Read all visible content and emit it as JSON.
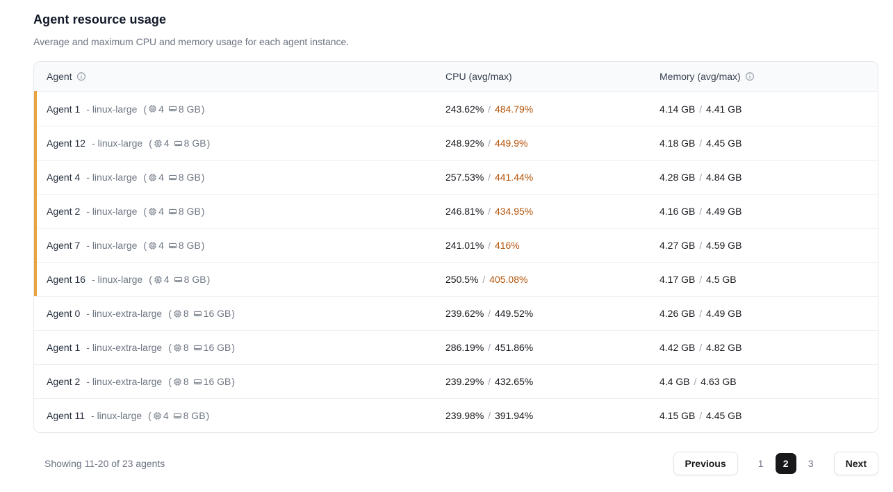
{
  "page": {
    "title": "Agent resource usage",
    "subtitle": "Average and maximum CPU and memory usage for each agent instance."
  },
  "table": {
    "columns": {
      "agent": "Agent",
      "cpu": "CPU (avg/max)",
      "memory": "Memory (avg/max)"
    },
    "separator": "/",
    "rows": [
      {
        "name": "Agent 1",
        "type": "- linux-large",
        "cpus": "4",
        "mem": "8 GB",
        "cpu_avg": "243.62%",
        "cpu_max": "484.79%",
        "flagged": true,
        "mem_avg": "4.14 GB",
        "mem_max": "4.41 GB"
      },
      {
        "name": "Agent 12",
        "type": "- linux-large",
        "cpus": "4",
        "mem": "8 GB",
        "cpu_avg": "248.92%",
        "cpu_max": "449.9%",
        "flagged": true,
        "mem_avg": "4.18 GB",
        "mem_max": "4.45 GB"
      },
      {
        "name": "Agent 4",
        "type": "- linux-large",
        "cpus": "4",
        "mem": "8 GB",
        "cpu_avg": "257.53%",
        "cpu_max": "441.44%",
        "flagged": true,
        "mem_avg": "4.28 GB",
        "mem_max": "4.84 GB"
      },
      {
        "name": "Agent 2",
        "type": "- linux-large",
        "cpus": "4",
        "mem": "8 GB",
        "cpu_avg": "246.81%",
        "cpu_max": "434.95%",
        "flagged": true,
        "mem_avg": "4.16 GB",
        "mem_max": "4.49 GB"
      },
      {
        "name": "Agent 7",
        "type": "- linux-large",
        "cpus": "4",
        "mem": "8 GB",
        "cpu_avg": "241.01%",
        "cpu_max": "416%",
        "flagged": true,
        "mem_avg": "4.27 GB",
        "mem_max": "4.59 GB"
      },
      {
        "name": "Agent 16",
        "type": "- linux-large",
        "cpus": "4",
        "mem": "8 GB",
        "cpu_avg": "250.5%",
        "cpu_max": "405.08%",
        "flagged": true,
        "mem_avg": "4.17 GB",
        "mem_max": "4.5 GB"
      },
      {
        "name": "Agent 0",
        "type": "- linux-extra-large",
        "cpus": "8",
        "mem": "16 GB",
        "cpu_avg": "239.62%",
        "cpu_max": "449.52%",
        "flagged": false,
        "mem_avg": "4.26 GB",
        "mem_max": "4.49 GB"
      },
      {
        "name": "Agent 1",
        "type": "- linux-extra-large",
        "cpus": "8",
        "mem": "16 GB",
        "cpu_avg": "286.19%",
        "cpu_max": "451.86%",
        "flagged": false,
        "mem_avg": "4.42 GB",
        "mem_max": "4.82 GB"
      },
      {
        "name": "Agent 2",
        "type": "- linux-extra-large",
        "cpus": "8",
        "mem": "16 GB",
        "cpu_avg": "239.29%",
        "cpu_max": "432.65%",
        "flagged": false,
        "mem_avg": "4.4 GB",
        "mem_max": "4.63 GB"
      },
      {
        "name": "Agent 11",
        "type": "- linux-large",
        "cpus": "4",
        "mem": "8 GB",
        "cpu_avg": "239.98%",
        "cpu_max": "391.94%",
        "flagged": false,
        "mem_avg": "4.15 GB",
        "mem_max": "4.45 GB"
      }
    ]
  },
  "footer": {
    "summary": "Showing 11-20 of 23 agents",
    "prev_label": "Previous",
    "next_label": "Next",
    "pages": [
      "1",
      "2",
      "3"
    ],
    "active_page": "2"
  },
  "colors": {
    "flag_amber": "#E8A33D",
    "cpu_max_alert": "#B45309",
    "active_page_bg": "#18181b"
  }
}
